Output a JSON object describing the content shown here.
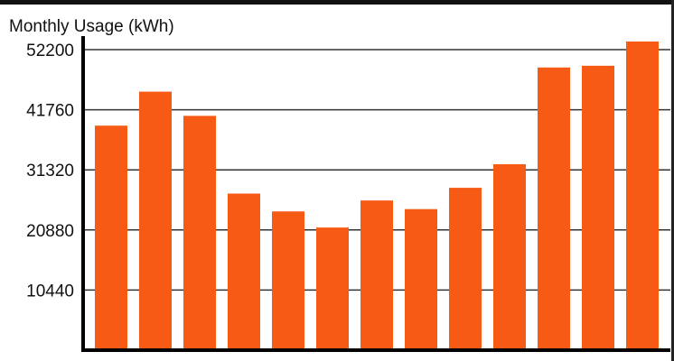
{
  "chart_data": {
    "type": "bar",
    "title": "",
    "ylabel": "Monthly Usage (kWh)",
    "xlabel": "",
    "ylim": [
      0,
      52200
    ],
    "yticks": [
      10440,
      20880,
      31320,
      41760,
      52200
    ],
    "grid": true,
    "categories": [
      "",
      "",
      "",
      "",
      "",
      "",
      "",
      "",
      "",
      "",
      "",
      "",
      ""
    ],
    "series": [
      {
        "values": [
          39000,
          44900,
          40700,
          27200,
          24100,
          21300,
          26000,
          24500,
          28200,
          32300,
          49100,
          49400,
          54200
        ]
      }
    ]
  },
  "colors": {
    "bar": "#f65a14",
    "grid": "#333333",
    "axis": "#000000"
  }
}
